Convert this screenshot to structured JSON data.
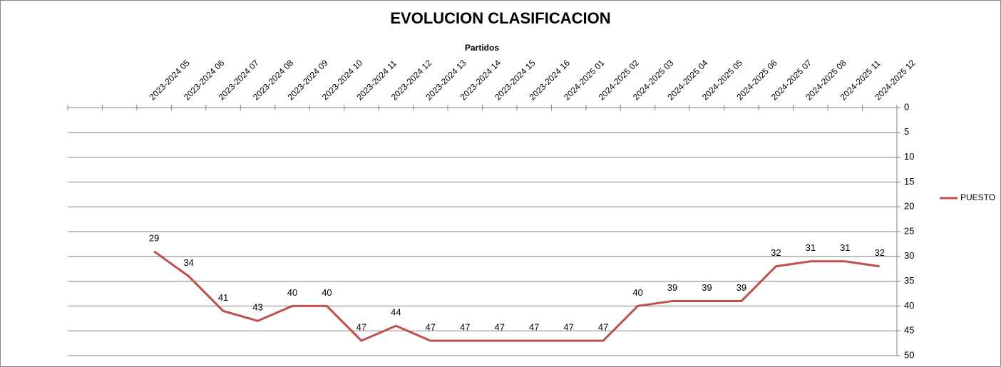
{
  "chart_data": {
    "type": "line",
    "title": "EVOLUCION CLASIFICACION",
    "x_label": "Partidos",
    "categories": [
      null,
      null,
      "2023-2024 05",
      "2023-2024 06",
      "2023-2024 07",
      "2023-2024 08",
      "2023-2024 09",
      "2023-2024 10",
      "2023-2024 11",
      "2023-2024 12",
      "2023-2024 13",
      "2023-2024 14",
      "2023-2024 15",
      "2023-2024 16",
      "2024-2025 01",
      "2024-2025 02",
      "2024-2025 03",
      "2024-2025 04",
      "2024-2025 05",
      "2024-2025 06",
      "2024-2025 07",
      "2024-2025 08",
      "2024-2025 11",
      "2024-2025 12"
    ],
    "series": [
      {
        "name": "PUESTO",
        "color": "#c0504d",
        "values": [
          null,
          null,
          29,
          34,
          41,
          43,
          40,
          40,
          47,
          44,
          47,
          47,
          47,
          47,
          47,
          47,
          40,
          39,
          39,
          39,
          32,
          31,
          31,
          32
        ]
      }
    ],
    "ylim": [
      0,
      50
    ],
    "yticks": [
      0,
      5,
      10,
      15,
      20,
      25,
      30,
      35,
      40,
      45,
      50
    ],
    "y_inverted": true,
    "y_axis_side": "right",
    "x_axis_side": "top",
    "grid": true,
    "legend": "right"
  }
}
